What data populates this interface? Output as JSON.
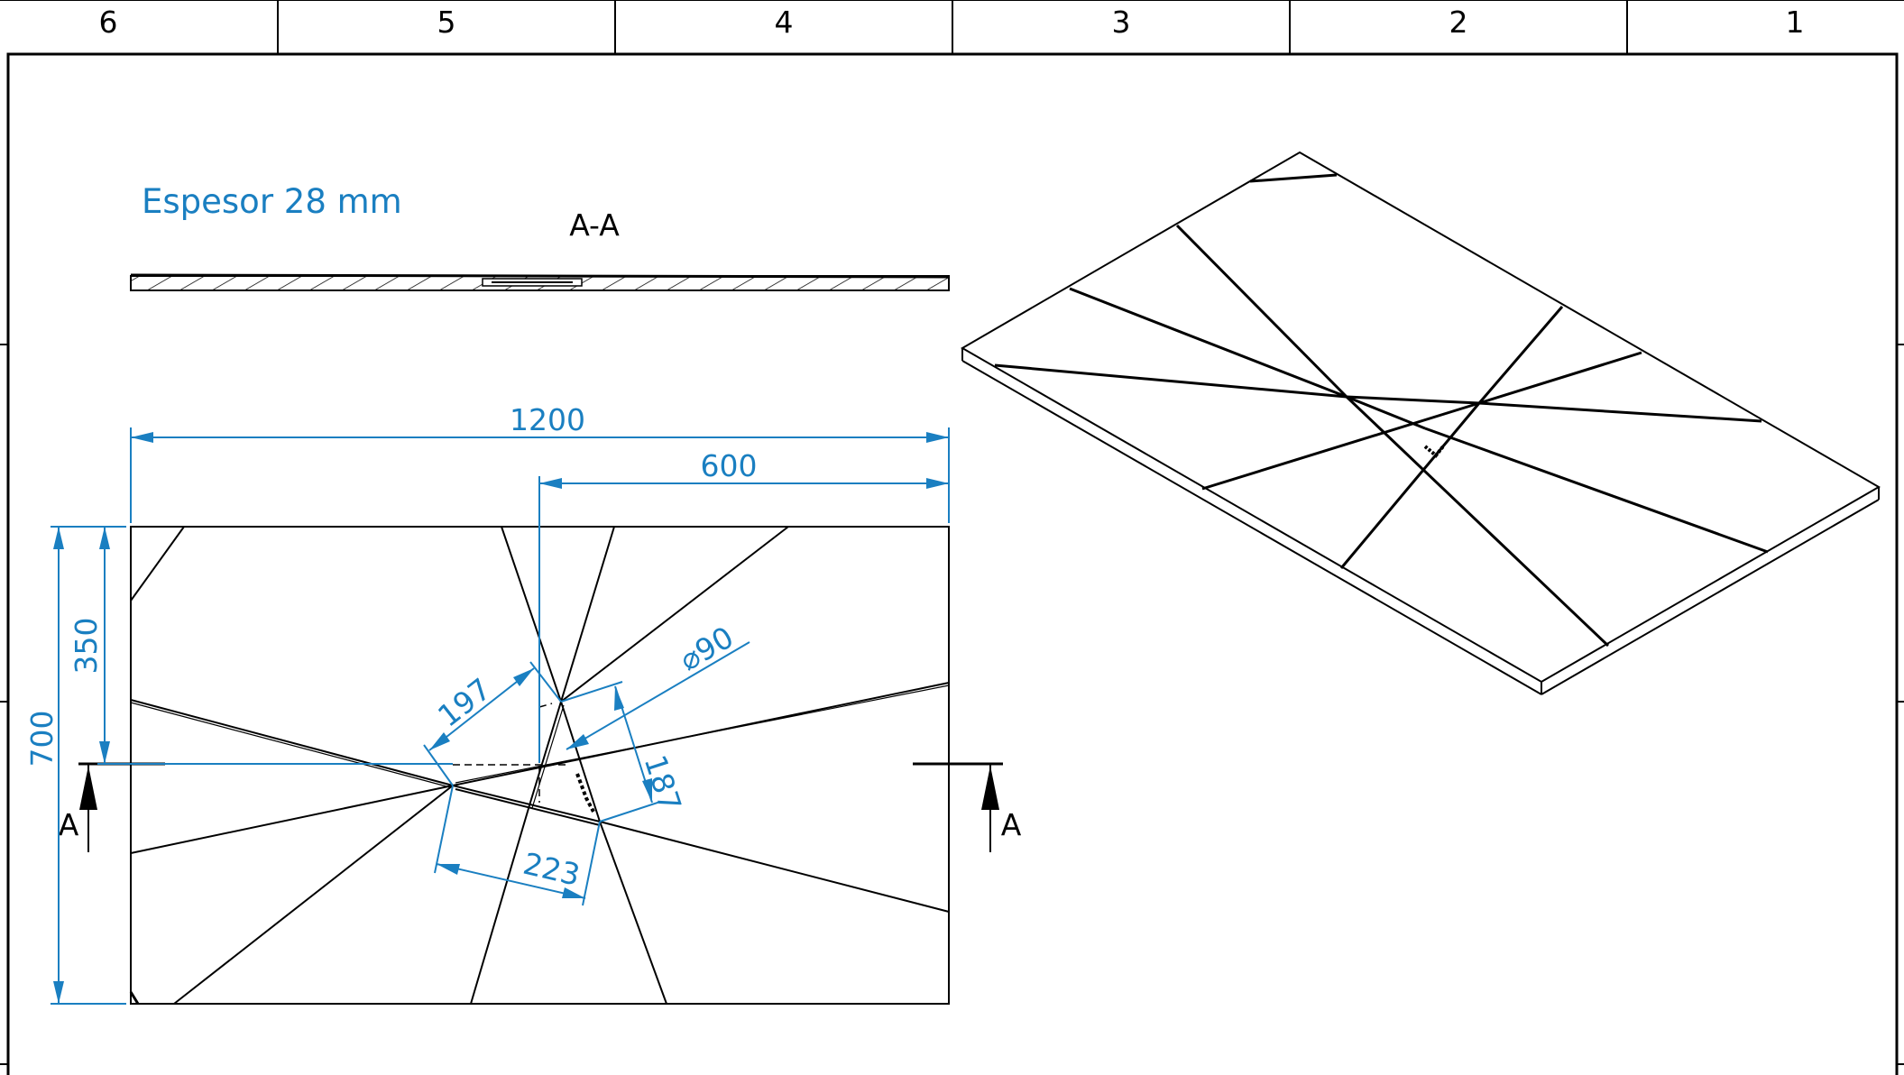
{
  "zones": [
    "6",
    "5",
    "4",
    "3",
    "2",
    "1"
  ],
  "note": "Espesor 28 mm",
  "section_title": "A-A",
  "section_marker": "A",
  "dimensions": {
    "total_width": "1200",
    "half_width": "600",
    "total_height": "700",
    "half_height": "350",
    "diameter": "⌀90",
    "d197": "197",
    "d223": "223",
    "d187": "187"
  }
}
